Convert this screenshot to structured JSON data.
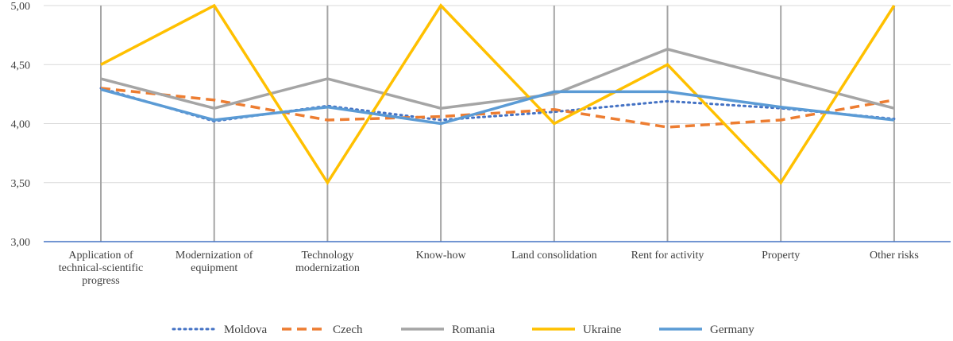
{
  "chart_data": {
    "type": "line",
    "title": "",
    "xlabel": "",
    "ylabel": "",
    "ylim": [
      3.0,
      5.0
    ],
    "yticks": [
      "3,00",
      "3,50",
      "4,00",
      "4,50",
      "5,00"
    ],
    "ytick_values": [
      3.0,
      3.5,
      4.0,
      4.5,
      5.0
    ],
    "grid": "horizontal",
    "legend_position": "bottom",
    "categories": [
      "Application of technical-scientific progress",
      "Modernization of equipment",
      "Technology modernization",
      "Know-how",
      "Land consolidation",
      "Rent for activity",
      "Property",
      "Other risks"
    ],
    "category_lines": [
      [
        "Application of",
        "technical-scientific",
        "progress"
      ],
      [
        "Modernization of",
        "equipment"
      ],
      [
        "Technology",
        "modernization"
      ],
      [
        "Know-how"
      ],
      [
        "Land consolidation"
      ],
      [
        "Rent for activity"
      ],
      [
        "Property"
      ],
      [
        "Other risks"
      ]
    ],
    "series": [
      {
        "name": "Moldova",
        "color": "#4472C4",
        "style": "dotted",
        "values": [
          4.3,
          4.02,
          4.15,
          4.03,
          4.1,
          4.19,
          4.13,
          4.04
        ]
      },
      {
        "name": "Czech",
        "color": "#ED7D31",
        "style": "dashed",
        "values": [
          4.3,
          4.2,
          4.03,
          4.06,
          4.12,
          3.97,
          4.03,
          4.2
        ]
      },
      {
        "name": "Romania",
        "color": "#A5A5A5",
        "style": "solid",
        "values": [
          4.38,
          4.13,
          4.38,
          4.13,
          4.25,
          4.63,
          4.38,
          4.13
        ]
      },
      {
        "name": "Ukraine",
        "color": "#FFC000",
        "style": "solid",
        "values": [
          4.5,
          5.0,
          3.5,
          5.0,
          4.0,
          4.5,
          3.5,
          5.0
        ]
      },
      {
        "name": "Germany",
        "color": "#5B9BD5",
        "style": "solid",
        "values": [
          4.29,
          4.03,
          4.14,
          4.0,
          4.27,
          4.27,
          4.14,
          4.03
        ]
      }
    ]
  }
}
